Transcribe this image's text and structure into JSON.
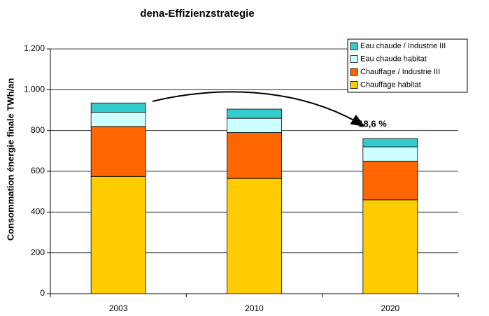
{
  "chart_data": {
    "type": "stacked_bar",
    "title": "dena-Effizienzstrategie",
    "y_label": "Consommation énergie finale TWh/an",
    "categories": [
      "2003",
      "2010",
      "2020"
    ],
    "series": [
      {
        "name": "Chauffage habitat",
        "color": "#ffcc00",
        "values": [
          575,
          565,
          460
        ]
      },
      {
        "name": "Chauffage / Industrie III",
        "color": "#ff6600",
        "values": [
          245,
          225,
          190
        ]
      },
      {
        "name": "Eau chaude habitat",
        "color": "#ccffff",
        "values": [
          70,
          70,
          70
        ]
      },
      {
        "name": "Eau chaude / Industrie III",
        "color": "#33cccc",
        "values": [
          45,
          45,
          40
        ]
      }
    ],
    "annotation": "-18,6 %",
    "ylim": [
      0,
      1200
    ],
    "yticks": [
      0,
      200,
      400,
      600,
      800,
      {
        "value": 1000,
        "label": "1.000"
      },
      {
        "value": 1200,
        "label": "1.200"
      }
    ],
    "grid": true,
    "legend": "upper right"
  }
}
